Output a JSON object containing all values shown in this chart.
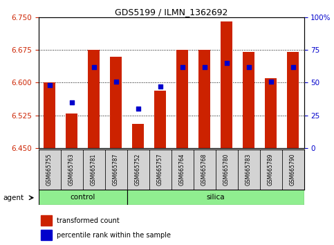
{
  "title": "GDS5199 / ILMN_1362692",
  "samples": [
    "GSM665755",
    "GSM665763",
    "GSM665781",
    "GSM665787",
    "GSM665752",
    "GSM665757",
    "GSM665764",
    "GSM665768",
    "GSM665780",
    "GSM665783",
    "GSM665789",
    "GSM665790"
  ],
  "groups": [
    "control",
    "control",
    "control",
    "control",
    "silica",
    "silica",
    "silica",
    "silica",
    "silica",
    "silica",
    "silica",
    "silica"
  ],
  "transformed_count": [
    6.6,
    6.53,
    6.675,
    6.66,
    6.505,
    6.582,
    6.675,
    6.675,
    6.74,
    6.67,
    6.61,
    6.67
  ],
  "percentile_rank": [
    48,
    35,
    62,
    51,
    30,
    47,
    62,
    62,
    65,
    62,
    51,
    62
  ],
  "ylim": [
    6.45,
    6.75
  ],
  "yticks_left": [
    6.45,
    6.525,
    6.6,
    6.675,
    6.75
  ],
  "yticks_right": [
    0,
    25,
    50,
    75,
    100
  ],
  "bar_color": "#CC2200",
  "dot_color": "#0000CC",
  "group_color": "#90EE90",
  "legend_bar": "transformed count",
  "legend_dot": "percentile rank within the sample",
  "bar_bottom": 6.45,
  "n_control": 4,
  "n_silica": 8
}
